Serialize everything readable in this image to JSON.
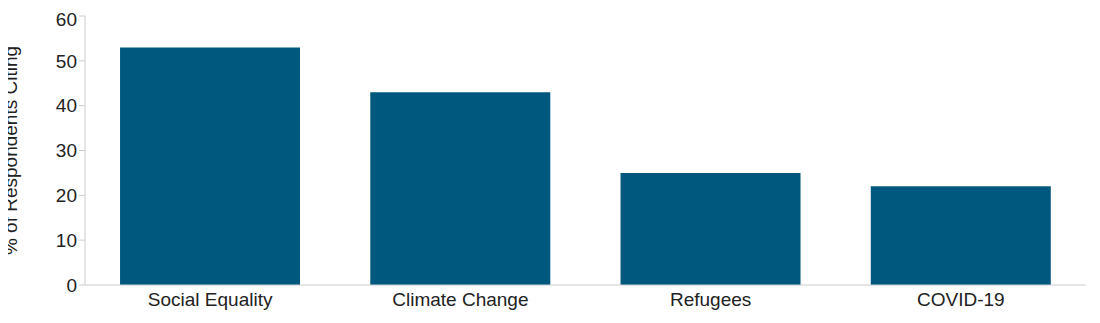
{
  "chart_data": {
    "type": "bar",
    "y_label": "% of Respondents Citing",
    "categories": [
      "Social Equality",
      "Climate Change",
      "Refugees",
      "COVID-19"
    ],
    "values": [
      53,
      43,
      25,
      22
    ],
    "color": "#00587f",
    "ylim": [
      0,
      60
    ],
    "yticks": [
      0,
      10,
      20,
      30,
      40,
      50,
      60
    ],
    "grid": false
  }
}
